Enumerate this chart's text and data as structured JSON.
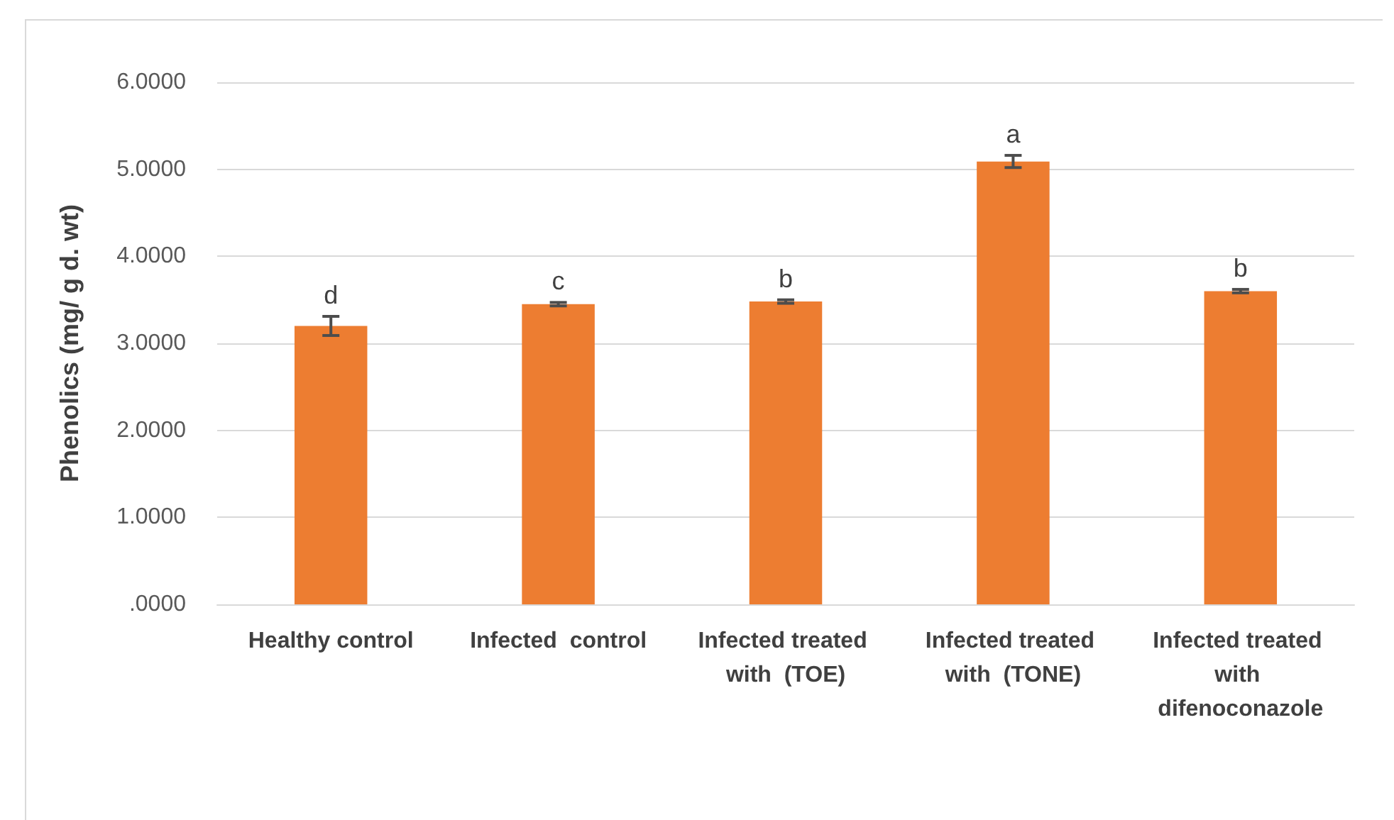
{
  "chart_data": {
    "type": "bar",
    "ylabel": "Phenolics (mg/ g d. wt)",
    "categories": [
      "Healthy control",
      "Infected  control",
      "Infected treated with  (TOE)",
      "Infected treated with  (TONE)",
      "Infected treated with difenoconazole"
    ],
    "values": [
      3.2,
      3.45,
      3.48,
      5.09,
      3.6
    ],
    "errors": [
      0.11,
      0.02,
      0.02,
      0.07,
      0.02
    ],
    "color": "#ed7d31",
    "ylim": [
      0,
      6
    ],
    "yticks": [
      {
        "value": 0,
        "label": ".0000"
      },
      {
        "value": 1,
        "label": "1.0000"
      },
      {
        "value": 2,
        "label": "2.0000"
      },
      {
        "value": 3,
        "label": "3.0000"
      },
      {
        "value": 4,
        "label": "4.0000"
      },
      {
        "value": 5,
        "label": "5.0000"
      },
      {
        "value": 6,
        "label": "6.0000"
      }
    ],
    "grid": "y",
    "annotations": [
      {
        "text": "d",
        "x": "Healthy control",
        "y": 3.31
      },
      {
        "text": "c",
        "x": "Infected  control",
        "y": 3.47
      },
      {
        "text": "b",
        "x": "Infected treated with  (TOE)",
        "y": 3.5
      },
      {
        "text": "a",
        "x": "Infected treated with  (TONE)",
        "y": 5.16
      },
      {
        "text": "b",
        "x": "Infected treated with difenoconazole",
        "y": 3.62
      }
    ]
  }
}
